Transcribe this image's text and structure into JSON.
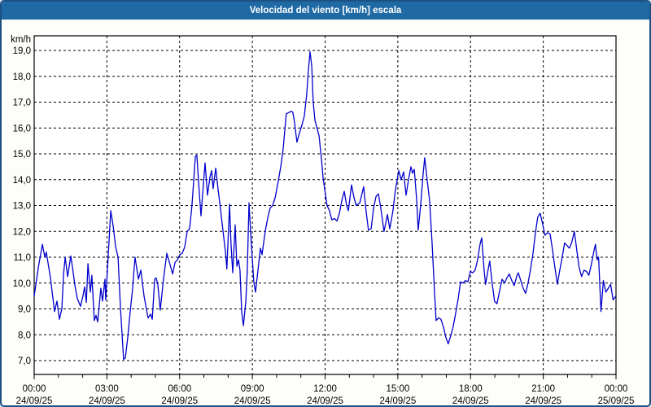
{
  "window": {
    "title": "Velocidad del viento [km/h] escala",
    "colors": {
      "titlebar": "#1f6aa5",
      "titlebar_text": "#ffffff",
      "border": "#1d5183",
      "background": "#fdfdfa",
      "plot_background": "#ffffff",
      "grid": "#000000",
      "axis_text": "#000000",
      "line": "#0000cc"
    }
  },
  "chart_data": {
    "type": "line",
    "title": "Velocidad del viento [km/h] escala",
    "xlabel": "",
    "ylabel": "km/h",
    "grid": true,
    "legend_position": "none",
    "ylim": [
      6.5,
      19.6
    ],
    "yticks": [
      7,
      8,
      9,
      10,
      11,
      12,
      13,
      14,
      15,
      16,
      17,
      18,
      19
    ],
    "ytick_labels": [
      "7,0",
      "8,0",
      "9,0",
      "10,0",
      "11,0",
      "12,0",
      "13,0",
      "14,0",
      "15,0",
      "16,0",
      "17,0",
      "18,0",
      "19,0"
    ],
    "xlim_hours": [
      0,
      24
    ],
    "xticks_hours": [
      0,
      3,
      6,
      9,
      12,
      15,
      18,
      21,
      24
    ],
    "xtick_time_labels": [
      "00:00",
      "03:00",
      "06:00",
      "09:00",
      "12:00",
      "15:00",
      "18:00",
      "21:00",
      "00:00"
    ],
    "xtick_date_labels": [
      "24/09/25",
      "24/09/25",
      "24/09/25",
      "24/09/25",
      "24/09/25",
      "24/09/25",
      "24/09/25",
      "24/09/25",
      "25/09/25"
    ],
    "minor_tick_every_hours": 1,
    "series": [
      {
        "name": "Velocidad del viento",
        "units": "km/h",
        "points": [
          [
            0.0,
            9.5
          ],
          [
            0.17,
            10.6
          ],
          [
            0.34,
            11.5
          ],
          [
            0.44,
            11.0
          ],
          [
            0.5,
            11.2
          ],
          [
            0.67,
            10.2
          ],
          [
            0.84,
            8.9
          ],
          [
            0.94,
            9.3
          ],
          [
            1.04,
            8.6
          ],
          [
            1.14,
            9.0
          ],
          [
            1.21,
            10.3
          ],
          [
            1.28,
            11.0
          ],
          [
            1.38,
            10.25
          ],
          [
            1.51,
            11.05
          ],
          [
            1.61,
            10.4
          ],
          [
            1.68,
            9.9
          ],
          [
            1.78,
            9.4
          ],
          [
            1.91,
            9.1
          ],
          [
            2.01,
            9.5
          ],
          [
            2.08,
            9.85
          ],
          [
            2.15,
            9.25
          ],
          [
            2.22,
            10.75
          ],
          [
            2.32,
            9.65
          ],
          [
            2.38,
            10.3
          ],
          [
            2.48,
            8.55
          ],
          [
            2.55,
            8.75
          ],
          [
            2.62,
            8.5
          ],
          [
            2.75,
            9.8
          ],
          [
            2.82,
            9.3
          ],
          [
            2.92,
            10.15
          ],
          [
            2.95,
            9.35
          ],
          [
            3.05,
            11.0
          ],
          [
            3.16,
            12.8
          ],
          [
            3.26,
            12.2
          ],
          [
            3.36,
            11.4
          ],
          [
            3.46,
            11.0
          ],
          [
            3.56,
            9.0
          ],
          [
            3.69,
            7.05
          ],
          [
            3.76,
            7.1
          ],
          [
            3.86,
            7.9
          ],
          [
            3.96,
            8.9
          ],
          [
            4.06,
            9.8
          ],
          [
            4.16,
            11.0
          ],
          [
            4.3,
            10.15
          ],
          [
            4.4,
            10.5
          ],
          [
            4.53,
            9.5
          ],
          [
            4.7,
            8.65
          ],
          [
            4.8,
            8.8
          ],
          [
            4.87,
            8.6
          ],
          [
            4.97,
            10.15
          ],
          [
            5.03,
            10.2
          ],
          [
            5.1,
            9.95
          ],
          [
            5.2,
            8.95
          ],
          [
            5.34,
            10.2
          ],
          [
            5.47,
            11.15
          ],
          [
            5.61,
            10.7
          ],
          [
            5.71,
            10.35
          ],
          [
            5.81,
            10.8
          ],
          [
            5.91,
            10.9
          ],
          [
            6.01,
            11.1
          ],
          [
            6.11,
            11.15
          ],
          [
            6.21,
            11.4
          ],
          [
            6.31,
            12.0
          ],
          [
            6.41,
            12.1
          ],
          [
            6.51,
            13.0
          ],
          [
            6.65,
            14.9
          ],
          [
            6.71,
            14.95
          ],
          [
            6.81,
            13.5
          ],
          [
            6.88,
            12.6
          ],
          [
            6.98,
            13.8
          ],
          [
            7.05,
            14.65
          ],
          [
            7.15,
            13.4
          ],
          [
            7.25,
            14.1
          ],
          [
            7.32,
            14.35
          ],
          [
            7.38,
            13.65
          ],
          [
            7.49,
            14.45
          ],
          [
            7.59,
            13.6
          ],
          [
            7.65,
            13.15
          ],
          [
            7.79,
            12.0
          ],
          [
            7.89,
            11.2
          ],
          [
            7.95,
            10.55
          ],
          [
            8.06,
            13.05
          ],
          [
            8.12,
            11.5
          ],
          [
            8.19,
            10.4
          ],
          [
            8.29,
            12.25
          ],
          [
            8.36,
            10.65
          ],
          [
            8.43,
            10.9
          ],
          [
            8.49,
            10.5
          ],
          [
            8.56,
            8.9
          ],
          [
            8.63,
            8.35
          ],
          [
            8.73,
            9.3
          ],
          [
            8.79,
            10.5
          ],
          [
            8.86,
            13.1
          ],
          [
            8.96,
            11.5
          ],
          [
            9.06,
            10.05
          ],
          [
            9.13,
            9.65
          ],
          [
            9.23,
            10.5
          ],
          [
            9.33,
            11.35
          ],
          [
            9.4,
            11.1
          ],
          [
            9.53,
            12.0
          ],
          [
            9.63,
            12.5
          ],
          [
            9.73,
            12.9
          ],
          [
            9.84,
            13.0
          ],
          [
            9.94,
            13.3
          ],
          [
            10.07,
            13.95
          ],
          [
            10.17,
            14.5
          ],
          [
            10.27,
            15.2
          ],
          [
            10.4,
            16.55
          ],
          [
            10.51,
            16.6
          ],
          [
            10.61,
            16.65
          ],
          [
            10.67,
            16.6
          ],
          [
            10.74,
            16.2
          ],
          [
            10.84,
            15.45
          ],
          [
            10.94,
            15.8
          ],
          [
            11.04,
            16.1
          ],
          [
            11.14,
            16.45
          ],
          [
            11.24,
            17.3
          ],
          [
            11.31,
            18.2
          ],
          [
            11.38,
            18.95
          ],
          [
            11.45,
            18.4
          ],
          [
            11.51,
            17.0
          ],
          [
            11.58,
            16.3
          ],
          [
            11.65,
            16.05
          ],
          [
            11.75,
            15.7
          ],
          [
            11.85,
            14.8
          ],
          [
            11.92,
            14.05
          ],
          [
            12.02,
            13.4
          ],
          [
            12.08,
            13.0
          ],
          [
            12.18,
            12.8
          ],
          [
            12.28,
            12.45
          ],
          [
            12.39,
            12.5
          ],
          [
            12.49,
            12.4
          ],
          [
            12.59,
            12.7
          ],
          [
            12.69,
            13.2
          ],
          [
            12.79,
            13.55
          ],
          [
            12.89,
            13.0
          ],
          [
            12.96,
            12.8
          ],
          [
            13.09,
            13.8
          ],
          [
            13.19,
            13.3
          ],
          [
            13.29,
            13.0
          ],
          [
            13.43,
            13.1
          ],
          [
            13.59,
            13.73
          ],
          [
            13.69,
            12.8
          ],
          [
            13.79,
            12.05
          ],
          [
            13.9,
            12.1
          ],
          [
            14.0,
            12.9
          ],
          [
            14.1,
            13.35
          ],
          [
            14.2,
            13.45
          ],
          [
            14.3,
            12.9
          ],
          [
            14.43,
            12.0
          ],
          [
            14.57,
            12.65
          ],
          [
            14.67,
            12.1
          ],
          [
            14.8,
            12.8
          ],
          [
            14.9,
            13.6
          ],
          [
            15.04,
            14.35
          ],
          [
            15.14,
            14.0
          ],
          [
            15.24,
            14.3
          ],
          [
            15.34,
            13.4
          ],
          [
            15.44,
            14.0
          ],
          [
            15.54,
            14.5
          ],
          [
            15.61,
            14.25
          ],
          [
            15.68,
            14.4
          ],
          [
            15.78,
            13.2
          ],
          [
            15.84,
            12.05
          ],
          [
            15.94,
            13.0
          ],
          [
            16.04,
            14.2
          ],
          [
            16.11,
            14.85
          ],
          [
            16.21,
            14.0
          ],
          [
            16.31,
            13.2
          ],
          [
            16.41,
            11.6
          ],
          [
            16.51,
            9.7
          ],
          [
            16.58,
            8.55
          ],
          [
            16.68,
            8.65
          ],
          [
            16.78,
            8.6
          ],
          [
            16.88,
            8.3
          ],
          [
            16.98,
            7.9
          ],
          [
            17.08,
            7.65
          ],
          [
            17.18,
            7.95
          ],
          [
            17.28,
            8.3
          ],
          [
            17.38,
            8.8
          ],
          [
            17.49,
            9.4
          ],
          [
            17.59,
            10.05
          ],
          [
            17.69,
            10.0
          ],
          [
            17.79,
            10.1
          ],
          [
            17.89,
            10.05
          ],
          [
            17.99,
            10.45
          ],
          [
            18.09,
            10.4
          ],
          [
            18.19,
            10.5
          ],
          [
            18.29,
            10.9
          ],
          [
            18.39,
            11.5
          ],
          [
            18.46,
            11.75
          ],
          [
            18.56,
            10.5
          ],
          [
            18.62,
            9.95
          ],
          [
            18.72,
            10.5
          ],
          [
            18.79,
            10.85
          ],
          [
            18.89,
            10.0
          ],
          [
            18.99,
            9.3
          ],
          [
            19.09,
            9.2
          ],
          [
            19.2,
            9.7
          ],
          [
            19.3,
            10.15
          ],
          [
            19.4,
            10.0
          ],
          [
            19.5,
            10.2
          ],
          [
            19.6,
            10.35
          ],
          [
            19.7,
            10.1
          ],
          [
            19.8,
            9.9
          ],
          [
            19.9,
            10.25
          ],
          [
            19.97,
            10.4
          ],
          [
            20.07,
            10.1
          ],
          [
            20.17,
            9.8
          ],
          [
            20.27,
            9.6
          ],
          [
            20.37,
            10.0
          ],
          [
            20.47,
            10.5
          ],
          [
            20.57,
            11.1
          ],
          [
            20.67,
            11.9
          ],
          [
            20.77,
            12.55
          ],
          [
            20.87,
            12.7
          ],
          [
            20.97,
            12.3
          ],
          [
            21.07,
            11.85
          ],
          [
            21.18,
            11.95
          ],
          [
            21.28,
            11.9
          ],
          [
            21.38,
            11.3
          ],
          [
            21.48,
            10.6
          ],
          [
            21.58,
            9.95
          ],
          [
            21.68,
            10.5
          ],
          [
            21.78,
            11.0
          ],
          [
            21.88,
            11.55
          ],
          [
            21.98,
            11.45
          ],
          [
            22.08,
            11.35
          ],
          [
            22.18,
            11.6
          ],
          [
            22.28,
            12.0
          ],
          [
            22.38,
            11.3
          ],
          [
            22.48,
            10.6
          ],
          [
            22.58,
            10.25
          ],
          [
            22.68,
            10.5
          ],
          [
            22.78,
            10.45
          ],
          [
            22.88,
            10.3
          ],
          [
            22.98,
            10.7
          ],
          [
            23.08,
            11.2
          ],
          [
            23.15,
            11.5
          ],
          [
            23.22,
            10.9
          ],
          [
            23.28,
            11.0
          ],
          [
            23.38,
            8.9
          ],
          [
            23.48,
            10.1
          ],
          [
            23.58,
            9.65
          ],
          [
            23.68,
            9.8
          ],
          [
            23.78,
            9.95
          ],
          [
            23.88,
            9.35
          ],
          [
            24.0,
            9.5
          ]
        ]
      }
    ]
  }
}
